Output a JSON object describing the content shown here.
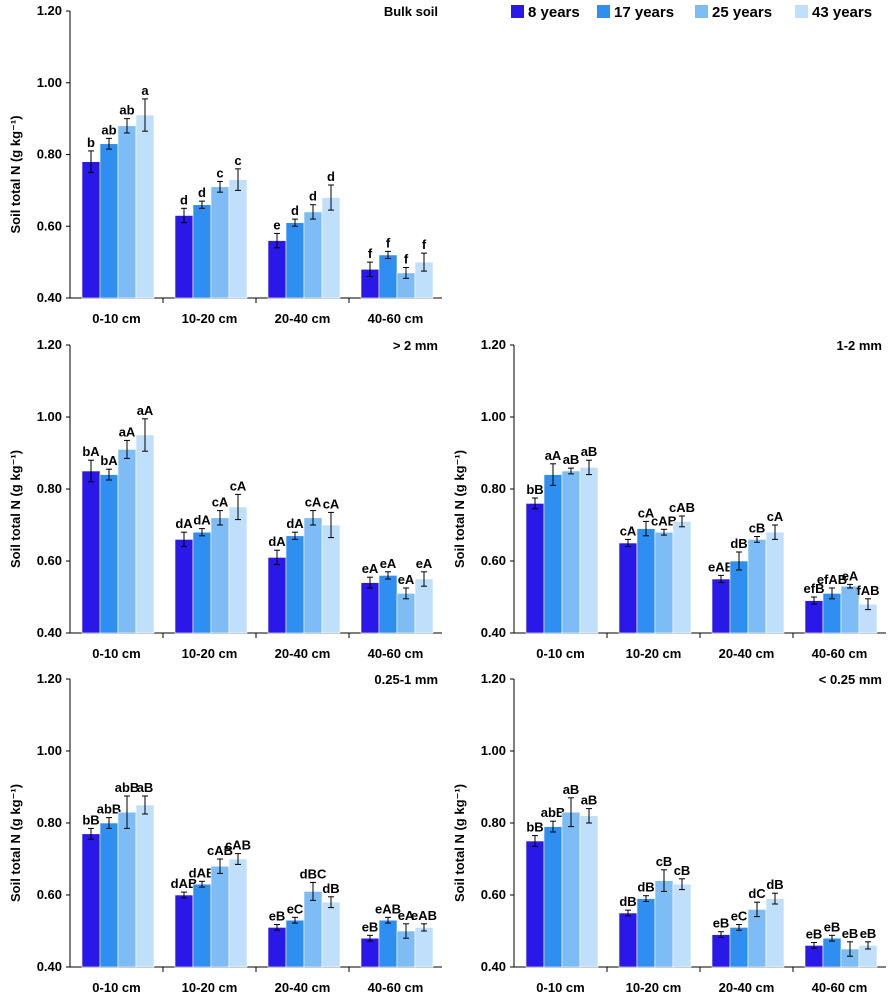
{
  "legend": [
    "8 years",
    "17 years",
    "25 years",
    "43 years"
  ],
  "colors": [
    "#2a18e8",
    "#2f8ff0",
    "#7ebcf6",
    "#bfdffb"
  ],
  "chart_data": [
    {
      "type": "bar",
      "title": "Bulk soil",
      "ylabel": "Soil total N (g kg⁻¹)",
      "ylim": [
        0.4,
        1.2
      ],
      "yticks": [
        "0.40",
        "0.60",
        "0.80",
        "1.00",
        "1.20"
      ],
      "categories": [
        "0-10 cm",
        "10-20 cm",
        "20-40 cm",
        "40-60 cm"
      ],
      "series": [
        {
          "name": "8 years",
          "values": [
            0.78,
            0.63,
            0.56,
            0.48
          ],
          "errors": [
            0.03,
            0.02,
            0.02,
            0.02
          ],
          "labels": [
            "b",
            "d",
            "e",
            "f"
          ]
        },
        {
          "name": "17 years",
          "values": [
            0.83,
            0.66,
            0.61,
            0.52
          ],
          "errors": [
            0.015,
            0.01,
            0.01,
            0.01
          ],
          "labels": [
            "ab",
            "d",
            "d",
            "f"
          ]
        },
        {
          "name": "25 years",
          "values": [
            0.88,
            0.71,
            0.64,
            0.47
          ],
          "errors": [
            0.02,
            0.015,
            0.02,
            0.015
          ],
          "labels": [
            "ab",
            "c",
            "d",
            "f"
          ]
        },
        {
          "name": "43 years",
          "values": [
            0.91,
            0.73,
            0.68,
            0.5
          ],
          "errors": [
            0.045,
            0.03,
            0.035,
            0.025
          ],
          "labels": [
            "a",
            "c",
            "d",
            "f"
          ]
        }
      ]
    },
    {
      "type": "bar",
      "title": "> 2 mm",
      "ylabel": "Soil total N (g kg⁻¹)",
      "ylim": [
        0.4,
        1.2
      ],
      "yticks": [
        "0.40",
        "0.60",
        "0.80",
        "1.00",
        "1.20"
      ],
      "categories": [
        "0-10 cm",
        "10-20 cm",
        "20-40 cm",
        "40-60 cm"
      ],
      "series": [
        {
          "name": "8 years",
          "values": [
            0.85,
            0.66,
            0.61,
            0.54
          ],
          "errors": [
            0.03,
            0.02,
            0.02,
            0.015
          ],
          "labels": [
            "bA",
            "dA",
            "dA",
            "eA"
          ]
        },
        {
          "name": "17 years",
          "values": [
            0.84,
            0.68,
            0.67,
            0.56
          ],
          "errors": [
            0.015,
            0.01,
            0.01,
            0.01
          ],
          "labels": [
            "bA",
            "dA",
            "dA",
            "eA"
          ]
        },
        {
          "name": "25 years",
          "values": [
            0.91,
            0.72,
            0.72,
            0.51
          ],
          "errors": [
            0.025,
            0.02,
            0.02,
            0.015
          ],
          "labels": [
            "aA",
            "cA",
            "cA",
            "eA"
          ]
        },
        {
          "name": "43 years",
          "values": [
            0.95,
            0.75,
            0.7,
            0.55
          ],
          "errors": [
            0.045,
            0.035,
            0.035,
            0.02
          ],
          "labels": [
            "aA",
            "cA",
            "cA",
            "eA"
          ]
        }
      ]
    },
    {
      "type": "bar",
      "title": "1-2 mm",
      "ylabel": "Soil total N (g kg⁻¹)",
      "ylim": [
        0.4,
        1.2
      ],
      "yticks": [
        "0.40",
        "0.60",
        "0.80",
        "1.00",
        "1.20"
      ],
      "categories": [
        "0-10 cm",
        "10-20 cm",
        "20-40 cm",
        "40-60 cm"
      ],
      "series": [
        {
          "name": "8 years",
          "values": [
            0.76,
            0.65,
            0.55,
            0.49
          ],
          "errors": [
            0.015,
            0.01,
            0.01,
            0.01
          ],
          "labels": [
            "bB",
            "cA",
            "eAB",
            "efB"
          ]
        },
        {
          "name": "17 years",
          "values": [
            0.84,
            0.69,
            0.6,
            0.51
          ],
          "errors": [
            0.03,
            0.02,
            0.025,
            0.015
          ],
          "labels": [
            "aA",
            "cA",
            "dB",
            "efAB"
          ]
        },
        {
          "name": "25 years",
          "values": [
            0.85,
            0.68,
            0.66,
            0.53
          ],
          "errors": [
            0.008,
            0.008,
            0.008,
            0.005
          ],
          "labels": [
            "aB",
            "cAB",
            "cB",
            "eA"
          ]
        },
        {
          "name": "43 years",
          "values": [
            0.86,
            0.71,
            0.68,
            0.48
          ],
          "errors": [
            0.02,
            0.015,
            0.02,
            0.015
          ],
          "labels": [
            "aB",
            "cAB",
            "cA",
            "fAB"
          ]
        }
      ]
    },
    {
      "type": "bar",
      "title": "0.25-1 mm",
      "ylabel": "Soil total N (g kg⁻¹)",
      "ylim": [
        0.4,
        1.2
      ],
      "yticks": [
        "0.40",
        "0.60",
        "0.80",
        "1.00",
        "1.20"
      ],
      "categories": [
        "0-10 cm",
        "10-20 cm",
        "20-40 cm",
        "40-60 cm"
      ],
      "series": [
        {
          "name": "8 years",
          "values": [
            0.77,
            0.6,
            0.51,
            0.48
          ],
          "errors": [
            0.015,
            0.008,
            0.008,
            0.008
          ],
          "labels": [
            "bB",
            "dAB",
            "eB",
            "eB"
          ]
        },
        {
          "name": "17 years",
          "values": [
            0.8,
            0.63,
            0.53,
            0.53
          ],
          "errors": [
            0.015,
            0.008,
            0.008,
            0.008
          ],
          "labels": [
            "abB",
            "dAB",
            "eC",
            "eAB"
          ]
        },
        {
          "name": "25 years",
          "values": [
            0.83,
            0.68,
            0.61,
            0.5
          ],
          "errors": [
            0.045,
            0.02,
            0.025,
            0.02
          ],
          "labels": [
            "abB",
            "cAB",
            "dBC",
            "eA"
          ]
        },
        {
          "name": "43 years",
          "values": [
            0.85,
            0.7,
            0.58,
            0.51
          ],
          "errors": [
            0.025,
            0.015,
            0.015,
            0.01
          ],
          "labels": [
            "aB",
            "cAB",
            "dB",
            "eAB"
          ]
        }
      ]
    },
    {
      "type": "bar",
      "title": "< 0.25 mm",
      "ylabel": "Soil total N (g kg⁻¹)",
      "ylim": [
        0.4,
        1.2
      ],
      "yticks": [
        "0.40",
        "0.60",
        "0.80",
        "1.00",
        "1.20"
      ],
      "categories": [
        "0-10 cm",
        "10-20 cm",
        "20-40 cm",
        "40-60 cm"
      ],
      "series": [
        {
          "name": "8 years",
          "values": [
            0.75,
            0.55,
            0.49,
            0.46
          ],
          "errors": [
            0.015,
            0.008,
            0.008,
            0.008
          ],
          "labels": [
            "bB",
            "dB",
            "eB",
            "eB"
          ]
        },
        {
          "name": "17 years",
          "values": [
            0.79,
            0.59,
            0.51,
            0.48
          ],
          "errors": [
            0.015,
            0.008,
            0.008,
            0.008
          ],
          "labels": [
            "abB",
            "dB",
            "eC",
            "eB"
          ]
        },
        {
          "name": "25 years",
          "values": [
            0.83,
            0.64,
            0.56,
            0.45
          ],
          "errors": [
            0.04,
            0.03,
            0.02,
            0.02
          ],
          "labels": [
            "aB",
            "cB",
            "dC",
            "eB"
          ]
        },
        {
          "name": "43 years",
          "values": [
            0.82,
            0.63,
            0.59,
            0.46
          ],
          "errors": [
            0.02,
            0.015,
            0.015,
            0.01
          ],
          "labels": [
            "aB",
            "cB",
            "dB",
            "eB"
          ]
        }
      ]
    }
  ]
}
